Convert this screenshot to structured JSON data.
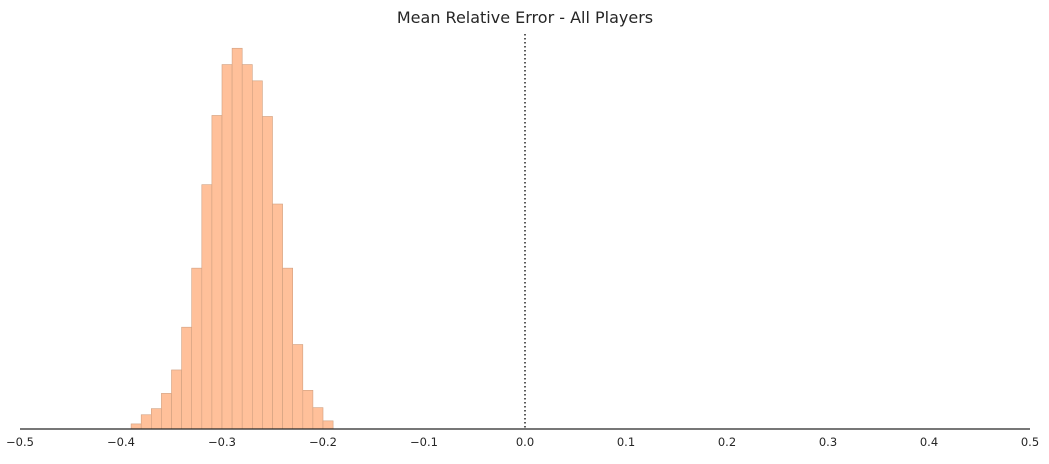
{
  "chart_data": {
    "type": "bar",
    "title": "Mean Relative Error - All Players",
    "xlabel": "",
    "ylabel": "",
    "xlim": [
      -0.5,
      0.5
    ],
    "x_ticks": [
      -0.5,
      -0.4,
      -0.3,
      -0.2,
      -0.1,
      0.0,
      0.1,
      0.2,
      0.3,
      0.4,
      0.5
    ],
    "x_tick_labels": [
      "−0.5",
      "−0.4",
      "−0.3",
      "−0.2",
      "−0.1",
      "0.0",
      "0.1",
      "0.2",
      "0.3",
      "0.4",
      "0.5"
    ],
    "y_axis_visible": false,
    "grid": false,
    "reference_line": {
      "x": 0.0,
      "style": "dotted",
      "color": "#000000"
    },
    "bar_color": "#ffc09a",
    "bar_edge_color": "#d0a080",
    "bin_width": 0.01,
    "bin_left_edges": [
      -0.39,
      -0.38,
      -0.37,
      -0.36,
      -0.35,
      -0.34,
      -0.33,
      -0.32,
      -0.31,
      -0.3,
      -0.29,
      -0.28,
      -0.27,
      -0.26,
      -0.25,
      -0.24,
      -0.23,
      -0.22,
      -0.21,
      -0.2
    ],
    "counts": [
      5,
      14,
      20,
      35,
      58,
      100,
      158,
      240,
      308,
      358,
      374,
      358,
      342,
      307,
      221,
      158,
      83,
      38,
      21,
      8
    ],
    "ylim": [
      0,
      388
    ]
  }
}
